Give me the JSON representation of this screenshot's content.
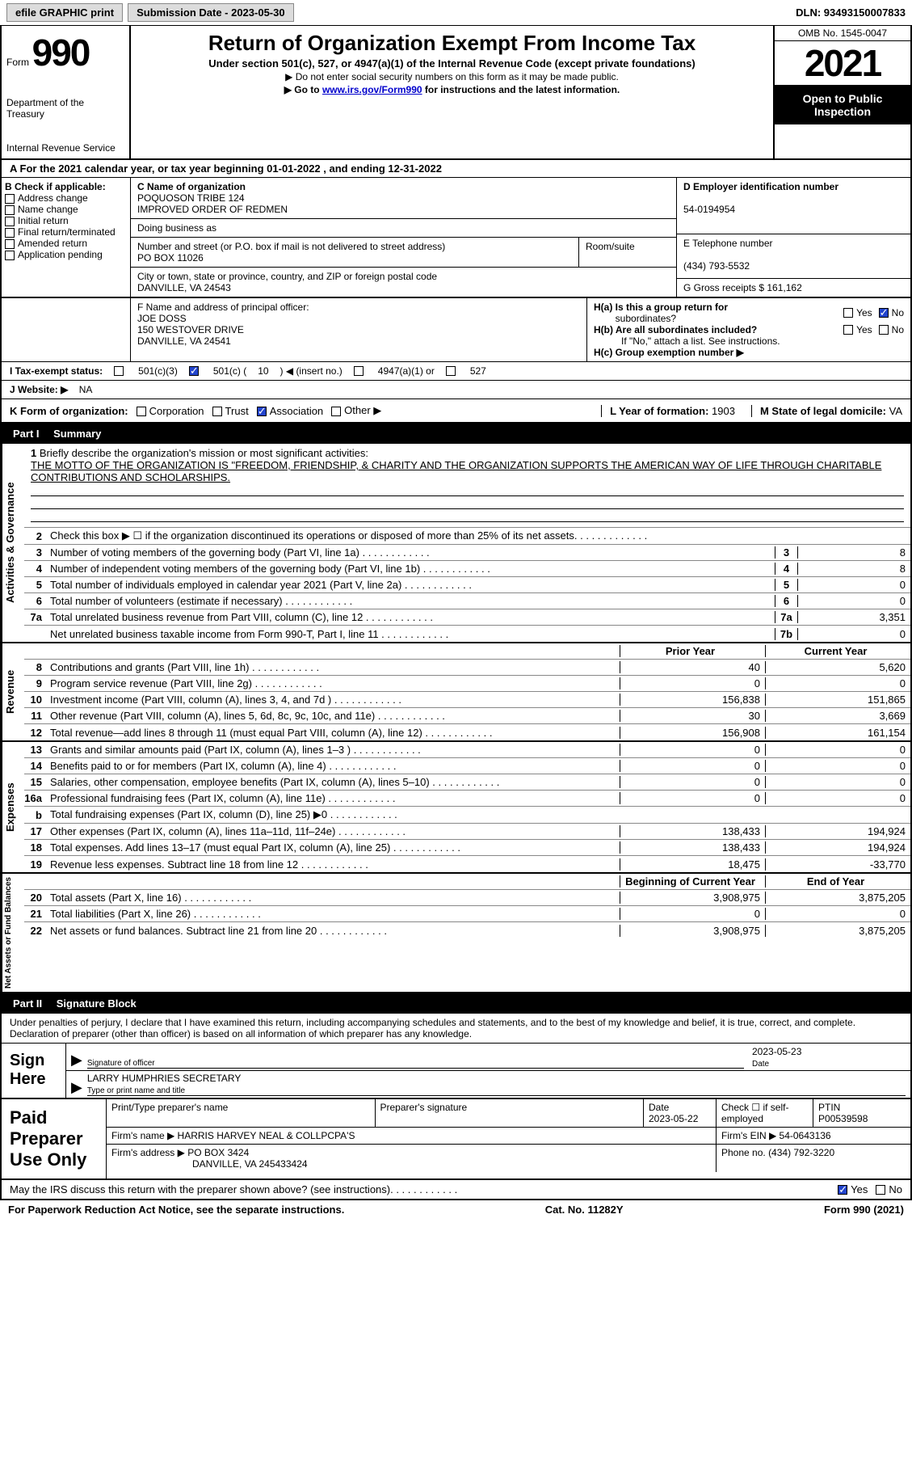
{
  "topbar": {
    "efile": "efile GRAPHIC print",
    "submission_label": "Submission Date - 2023-05-30",
    "dln_label": "DLN: 93493150007833"
  },
  "header": {
    "form_word": "Form",
    "form_num": "990",
    "dept": "Department of the Treasury",
    "irs": "Internal Revenue Service",
    "title": "Return of Organization Exempt From Income Tax",
    "sub1": "Under section 501(c), 527, or 4947(a)(1) of the Internal Revenue Code (except private foundations)",
    "sub2_prefix": "▶ Do not enter social security numbers on this form as it may be made public.",
    "sub3_prefix": "▶ Go to ",
    "sub3_link": "www.irs.gov/Form990",
    "sub3_suffix": " for instructions and the latest information.",
    "omb": "OMB No. 1545-0047",
    "year": "2021",
    "open": "Open to Public Inspection"
  },
  "line_a": "For the 2021 calendar year, or tax year beginning 01-01-2022   , and ending 12-31-2022",
  "col_b": {
    "title": "B Check if applicable:",
    "items": [
      "Address change",
      "Name change",
      "Initial return",
      "Final return/terminated",
      "Amended return",
      "Application pending"
    ]
  },
  "col_c": {
    "name_label": "C Name of organization",
    "name1": "POQUOSON TRIBE 124",
    "name2": "IMPROVED ORDER OF REDMEN",
    "dba_label": "Doing business as",
    "addr_label": "Number and street (or P.O. box if mail is not delivered to street address)",
    "room_label": "Room/suite",
    "addr": "PO BOX 11026",
    "city_label": "City or town, state or province, country, and ZIP or foreign postal code",
    "city": "DANVILLE, VA  24543"
  },
  "col_d": {
    "ein_label": "D Employer identification number",
    "ein": "54-0194954",
    "phone_label": "E Telephone number",
    "phone": "(434) 793-5532",
    "gross_label": "G Gross receipts $",
    "gross": "161,162"
  },
  "section_f": {
    "label": "F Name and address of principal officer:",
    "name": "JOE DOSS",
    "addr1": "150 WESTOVER DRIVE",
    "addr2": "DANVILLE, VA  24541"
  },
  "section_h": {
    "ha_label": "H(a)  Is this a group return for",
    "ha_sub": "subordinates?",
    "hb_label": "H(b)  Are all subordinates included?",
    "hb_note": "If \"No,\" attach a list. See instructions.",
    "hc_label": "H(c)  Group exemption number ▶",
    "yes": "Yes",
    "no": "No"
  },
  "line_i": {
    "label": "I   Tax-exempt status:",
    "opt1": "501(c)(3)",
    "opt2_pre": "501(c) (",
    "opt2_num": "10",
    "opt2_post": ") ◀ (insert no.)",
    "opt3": "4947(a)(1) or",
    "opt4": "527"
  },
  "line_j": {
    "label": "J   Website: ▶",
    "val": "NA"
  },
  "line_k": {
    "label": "K Form of organization:",
    "opts": [
      "Corporation",
      "Trust",
      "Association",
      "Other ▶"
    ],
    "l_label": "L Year of formation:",
    "l_val": "1903",
    "m_label": "M State of legal domicile:",
    "m_val": "VA"
  },
  "part1": {
    "num": "Part I",
    "title": "Summary"
  },
  "mission": {
    "num": "1",
    "label": "Briefly describe the organization's mission or most significant activities:",
    "text": "THE MOTTO OF THE ORGANIZATION IS \"FREEDOM, FRIENDSHIP, & CHARITY AND THE ORGANIZATION SUPPORTS THE AMERICAN WAY OF LIFE THROUGH CHARITABLE CONTRIBUTIONS AND SCHOLARSHIPS."
  },
  "gov_rows": [
    {
      "n": "2",
      "d": "Check this box ▶ ☐  if the organization discontinued its operations or disposed of more than 25% of its net assets.",
      "box": "",
      "v": ""
    },
    {
      "n": "3",
      "d": "Number of voting members of the governing body (Part VI, line 1a)",
      "box": "3",
      "v": "8"
    },
    {
      "n": "4",
      "d": "Number of independent voting members of the governing body (Part VI, line 1b)",
      "box": "4",
      "v": "8"
    },
    {
      "n": "5",
      "d": "Total number of individuals employed in calendar year 2021 (Part V, line 2a)",
      "box": "5",
      "v": "0"
    },
    {
      "n": "6",
      "d": "Total number of volunteers (estimate if necessary)",
      "box": "6",
      "v": "0"
    },
    {
      "n": "7a",
      "d": "Total unrelated business revenue from Part VIII, column (C), line 12",
      "box": "7a",
      "v": "3,351"
    },
    {
      "n": "",
      "d": "Net unrelated business taxable income from Form 990-T, Part I, line 11",
      "box": "7b",
      "v": "0"
    }
  ],
  "rev_header": {
    "prior": "Prior Year",
    "current": "Current Year"
  },
  "rev_rows": [
    {
      "n": "8",
      "d": "Contributions and grants (Part VIII, line 1h)",
      "p": "40",
      "c": "5,620"
    },
    {
      "n": "9",
      "d": "Program service revenue (Part VIII, line 2g)",
      "p": "0",
      "c": "0"
    },
    {
      "n": "10",
      "d": "Investment income (Part VIII, column (A), lines 3, 4, and 7d )",
      "p": "156,838",
      "c": "151,865"
    },
    {
      "n": "11",
      "d": "Other revenue (Part VIII, column (A), lines 5, 6d, 8c, 9c, 10c, and 11e)",
      "p": "30",
      "c": "3,669"
    },
    {
      "n": "12",
      "d": "Total revenue—add lines 8 through 11 (must equal Part VIII, column (A), line 12)",
      "p": "156,908",
      "c": "161,154"
    }
  ],
  "exp_rows": [
    {
      "n": "13",
      "d": "Grants and similar amounts paid (Part IX, column (A), lines 1–3 )",
      "p": "0",
      "c": "0"
    },
    {
      "n": "14",
      "d": "Benefits paid to or for members (Part IX, column (A), line 4)",
      "p": "0",
      "c": "0"
    },
    {
      "n": "15",
      "d": "Salaries, other compensation, employee benefits (Part IX, column (A), lines 5–10)",
      "p": "0",
      "c": "0"
    },
    {
      "n": "16a",
      "d": "Professional fundraising fees (Part IX, column (A), line 11e)",
      "p": "0",
      "c": "0"
    },
    {
      "n": "b",
      "d": "Total fundraising expenses (Part IX, column (D), line 25) ▶0",
      "p": "",
      "c": "",
      "shaded": true
    },
    {
      "n": "17",
      "d": "Other expenses (Part IX, column (A), lines 11a–11d, 11f–24e)",
      "p": "138,433",
      "c": "194,924"
    },
    {
      "n": "18",
      "d": "Total expenses. Add lines 13–17 (must equal Part IX, column (A), line 25)",
      "p": "138,433",
      "c": "194,924"
    },
    {
      "n": "19",
      "d": "Revenue less expenses. Subtract line 18 from line 12",
      "p": "18,475",
      "c": "-33,770"
    }
  ],
  "net_header": {
    "begin": "Beginning of Current Year",
    "end": "End of Year"
  },
  "net_rows": [
    {
      "n": "20",
      "d": "Total assets (Part X, line 16)",
      "p": "3,908,975",
      "c": "3,875,205"
    },
    {
      "n": "21",
      "d": "Total liabilities (Part X, line 26)",
      "p": "0",
      "c": "0"
    },
    {
      "n": "22",
      "d": "Net assets or fund balances. Subtract line 21 from line 20",
      "p": "3,908,975",
      "c": "3,875,205"
    }
  ],
  "vtabs": {
    "gov": "Activities & Governance",
    "rev": "Revenue",
    "exp": "Expenses",
    "net": "Net Assets or Fund Balances"
  },
  "part2": {
    "num": "Part II",
    "title": "Signature Block"
  },
  "sig": {
    "declare": "Under penalties of perjury, I declare that I have examined this return, including accompanying schedules and statements, and to the best of my knowledge and belief, it is true, correct, and complete. Declaration of preparer (other than officer) is based on all information of which preparer has any knowledge.",
    "sign_here": "Sign Here",
    "sig_officer": "Signature of officer",
    "date": "2023-05-23",
    "date_label": "Date",
    "name": "LARRY HUMPHRIES  SECRETARY",
    "name_label": "Type or print name and title"
  },
  "prep": {
    "title": "Paid Preparer Use Only",
    "print_label": "Print/Type preparer's name",
    "sig_label": "Preparer's signature",
    "date_label": "Date",
    "date": "2023-05-22",
    "check_label": "Check ☐ if self-employed",
    "ptin_label": "PTIN",
    "ptin": "P00539598",
    "firm_name_label": "Firm's name    ▶",
    "firm_name": "HARRIS HARVEY NEAL & COLLPCPA'S",
    "firm_ein_label": "Firm's EIN ▶",
    "firm_ein": "54-0643136",
    "firm_addr_label": "Firm's address ▶",
    "firm_addr1": "PO BOX 3424",
    "firm_addr2": "DANVILLE, VA  245433424",
    "phone_label": "Phone no.",
    "phone": "(434) 792-3220"
  },
  "discuss": {
    "text": "May the IRS discuss this return with the preparer shown above? (see instructions)",
    "yes": "Yes",
    "no": "No"
  },
  "footer": {
    "left": "For Paperwork Reduction Act Notice, see the separate instructions.",
    "center": "Cat. No. 11282Y",
    "right": "Form 990 (2021)"
  },
  "colors": {
    "black": "#000000",
    "link": "#0000cc",
    "checked": "#2244cc",
    "shade": "#cccccc",
    "btn_bg": "#dcdcdc"
  }
}
